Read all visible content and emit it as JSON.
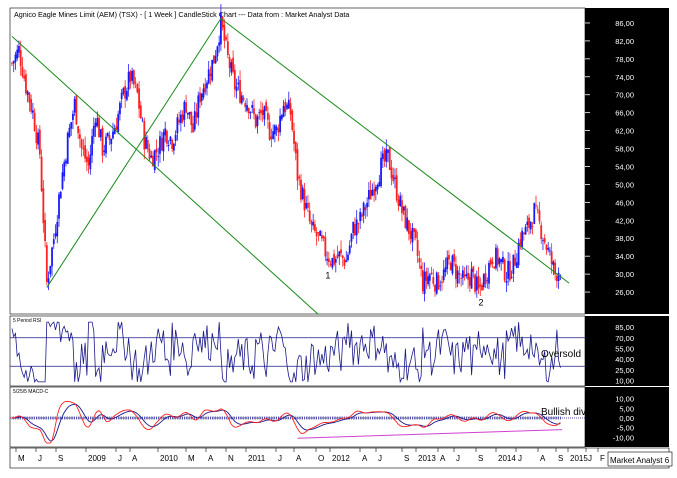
{
  "chart_data": [
    {
      "type": "candlestick",
      "title": "Agnico Eagle Mines Limit (AEM) (TSX) -  [ 1 Week ] CandleStick Chart --- Data from : Market Analyst Data",
      "ylim": [
        22,
        88
      ],
      "y_ticks": [
        "86,00",
        "82,00",
        "78,00",
        "74,00",
        "70,00",
        "66,00",
        "62,00",
        "58,00",
        "54,00",
        "50,00",
        "46,00",
        "42,00",
        "38,00",
        "34,00",
        "30,00",
        "26,00"
      ],
      "x_ticks": [
        "M",
        "J",
        "S",
        "2009",
        "J",
        "A",
        "2010",
        "M",
        "A",
        "N",
        "2011",
        "J",
        "A",
        "O",
        "2012",
        "A",
        "J",
        "S",
        "2013",
        "A",
        "J",
        "S",
        "2014",
        "J",
        "A",
        "S",
        "2015",
        "J",
        "F"
      ],
      "x_range": [
        "2008-05",
        "2015-03"
      ],
      "price_path": [
        [
          "2008-05",
          77
        ],
        [
          "2008-06",
          80
        ],
        [
          "2008-07",
          72
        ],
        [
          "2008-08",
          66
        ],
        [
          "2008-09",
          57
        ],
        [
          "2008-10",
          28
        ],
        [
          "2008-11",
          38
        ],
        [
          "2008-12",
          50
        ],
        [
          "2009-01",
          60
        ],
        [
          "2009-02",
          68
        ],
        [
          "2009-03",
          58
        ],
        [
          "2009-04",
          54
        ],
        [
          "2009-05",
          66
        ],
        [
          "2009-06",
          58
        ],
        [
          "2009-07",
          60
        ],
        [
          "2009-08",
          64
        ],
        [
          "2009-09",
          70
        ],
        [
          "2009-10",
          74
        ],
        [
          "2009-11",
          70
        ],
        [
          "2009-12",
          60
        ],
        [
          "2010-01",
          56
        ],
        [
          "2010-02",
          58
        ],
        [
          "2010-03",
          62
        ],
        [
          "2010-04",
          60
        ],
        [
          "2010-05",
          64
        ],
        [
          "2010-06",
          68
        ],
        [
          "2010-07",
          62
        ],
        [
          "2010-08",
          70
        ],
        [
          "2010-09",
          74
        ],
        [
          "2010-10",
          78
        ],
        [
          "2010-11",
          86
        ],
        [
          "2010-12",
          78
        ],
        [
          "2011-01",
          72
        ],
        [
          "2011-02",
          70
        ],
        [
          "2011-03",
          68
        ],
        [
          "2011-04",
          64
        ],
        [
          "2011-05",
          66
        ],
        [
          "2011-06",
          62
        ],
        [
          "2011-07",
          62
        ],
        [
          "2011-08",
          68
        ],
        [
          "2011-09",
          66
        ],
        [
          "2011-10",
          52
        ],
        [
          "2011-11",
          46
        ],
        [
          "2011-12",
          40
        ],
        [
          "2012-01",
          38
        ],
        [
          "2012-02",
          35
        ],
        [
          "2012-03",
          33
        ],
        [
          "2012-04",
          34
        ],
        [
          "2012-05",
          33
        ],
        [
          "2012-06",
          40
        ],
        [
          "2012-07",
          42
        ],
        [
          "2012-08",
          46
        ],
        [
          "2012-09",
          50
        ],
        [
          "2012-10",
          54
        ],
        [
          "2012-11",
          56
        ],
        [
          "2012-12",
          50
        ],
        [
          "2013-01",
          44
        ],
        [
          "2013-02",
          40
        ],
        [
          "2013-03",
          36
        ],
        [
          "2013-04",
          28
        ],
        [
          "2013-05",
          30
        ],
        [
          "2013-06",
          28
        ],
        [
          "2013-07",
          30
        ],
        [
          "2013-08",
          33
        ],
        [
          "2013-09",
          30
        ],
        [
          "2013-10",
          28
        ],
        [
          "2013-11",
          30
        ],
        [
          "2013-12",
          26
        ],
        [
          "2014-01",
          30
        ],
        [
          "2014-02",
          34
        ],
        [
          "2014-03",
          33
        ],
        [
          "2014-04",
          30
        ],
        [
          "2014-05",
          32
        ],
        [
          "2014-06",
          38
        ],
        [
          "2014-07",
          40
        ],
        [
          "2014-08",
          44
        ],
        [
          "2014-09",
          40
        ],
        [
          "2014-10",
          35
        ],
        [
          "2014-11",
          30
        ],
        [
          "2014-12",
          32
        ]
      ],
      "annotations": [
        {
          "text": "1",
          "date": "2012-02",
          "price": 29
        },
        {
          "text": "2",
          "date": "2013-12",
          "price": 23
        }
      ],
      "trendlines": [
        {
          "from": [
            "2008-05",
            83
          ],
          "to": [
            "2012-01",
            21
          ],
          "color": "#1a8a1a"
        },
        {
          "from": [
            "2008-10",
            27
          ],
          "to": [
            "2010-11",
            87
          ],
          "color": "#1a8a1a"
        },
        {
          "from": [
            "2010-11",
            87
          ],
          "to": [
            "2015-01",
            28
          ],
          "color": "#1a8a1a"
        }
      ],
      "colors": {
        "up": "#1a1aff",
        "down": "#ff2020",
        "trend": "#1a8a1a"
      },
      "legend_text": "Market Analyst 6"
    },
    {
      "type": "line",
      "title": "5 Period RSI",
      "ylim": [
        5,
        95
      ],
      "y_ticks": [
        "85,00",
        "70,00",
        "55,00",
        "40,00",
        "25,00",
        "10,00"
      ],
      "h_lines": [
        70,
        30
      ],
      "annotation": "Oversold",
      "series_color": "#1a1a8a"
    },
    {
      "type": "line",
      "title": "5/25/5 MACD-C",
      "ylim": [
        -14,
        14
      ],
      "y_ticks": [
        "10,00",
        "5,00",
        "0,00",
        "-5,00",
        "-10,00"
      ],
      "annotation": "Bullish divergence",
      "colors": {
        "macd": "#ff2020",
        "signal": "#1a1a8a",
        "divergence": "#d040d0"
      },
      "divergence_line": {
        "from": [
          "2011-10",
          -10.5
        ],
        "to": [
          "2014-12",
          -6
        ]
      }
    }
  ]
}
